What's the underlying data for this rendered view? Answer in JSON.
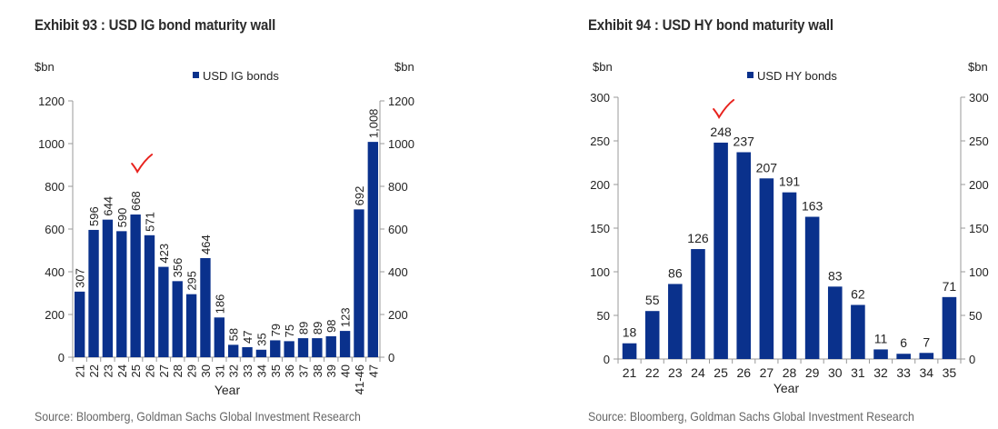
{
  "chart_data": [
    {
      "type": "bar",
      "exhibit_title": "Exhibit 93 : USD IG bond maturity wall",
      "title": "USD IG bond maturity wall",
      "xlabel": "Year",
      "ylabel_left": "$bn",
      "ylabel_right": "$bn",
      "ylim": [
        0,
        1200
      ],
      "yticks": [
        0,
        200,
        400,
        600,
        800,
        1000,
        1200
      ],
      "ytick_labels": [
        "0",
        "200",
        "400",
        "600",
        "800",
        "1000",
        "1200"
      ],
      "legend": {
        "label": "USD IG bonds",
        "placement": "top-center"
      },
      "grid": false,
      "data_label_orientation": "vertical",
      "categories": [
        "21",
        "22",
        "23",
        "24",
        "25",
        "26",
        "27",
        "28",
        "29",
        "30",
        "31",
        "32",
        "33",
        "34",
        "35",
        "36",
        "37",
        "38",
        "39",
        "40",
        "41-46",
        "47"
      ],
      "series": [
        {
          "name": "USD IG bonds",
          "values": [
            307,
            596,
            644,
            590,
            668,
            571,
            423,
            356,
            295,
            464,
            186,
            58,
            47,
            35,
            79,
            75,
            89,
            89,
            98,
            123,
            692,
            1008
          ],
          "labels": [
            "307",
            "596",
            "644",
            "590",
            "668",
            "571",
            "423",
            "356",
            "295",
            "464",
            "186",
            "58",
            "47",
            "35",
            "79",
            "75",
            "89",
            "89",
            "98",
            "123",
            "692",
            "1,008"
          ]
        }
      ],
      "annotation": {
        "type": "red-checkmark",
        "near_category": "25"
      },
      "source": "Source: Bloomberg, Goldman Sachs Global Investment Research"
    },
    {
      "type": "bar",
      "exhibit_title": "Exhibit 94 : USD HY bond maturity wall",
      "title": "USD HY bond maturity wall",
      "xlabel": "Year",
      "ylabel_left": "$bn",
      "ylabel_right": "$bn",
      "ylim": [
        0,
        300
      ],
      "yticks": [
        0,
        50,
        100,
        150,
        200,
        250,
        300
      ],
      "ytick_labels": [
        "0",
        "50",
        "100",
        "150",
        "200",
        "250",
        "300"
      ],
      "legend": {
        "label": "USD HY  bonds",
        "placement": "top-center"
      },
      "grid": false,
      "data_label_orientation": "horizontal",
      "categories": [
        "21",
        "22",
        "23",
        "24",
        "25",
        "26",
        "27",
        "28",
        "29",
        "30",
        "31",
        "32",
        "33",
        "34",
        "35"
      ],
      "series": [
        {
          "name": "USD HY bonds",
          "values": [
            18,
            55,
            86,
            126,
            248,
            237,
            207,
            191,
            163,
            83,
            62,
            11,
            6,
            7,
            71
          ],
          "labels": [
            "18",
            "55",
            "86",
            "126",
            "248",
            "237",
            "207",
            "191",
            "163",
            "83",
            "62",
            "11",
            "6",
            "7",
            "71"
          ]
        }
      ],
      "annotation": {
        "type": "red-checkmark",
        "near_category": "25"
      },
      "source": "Source: Bloomberg, Goldman Sachs Global Investment Research"
    }
  ],
  "colors": {
    "bar": "#0a318c",
    "axis": "#999999",
    "checkmark": "#e8231e",
    "title": "#2b2b2b",
    "source": "#666666"
  }
}
